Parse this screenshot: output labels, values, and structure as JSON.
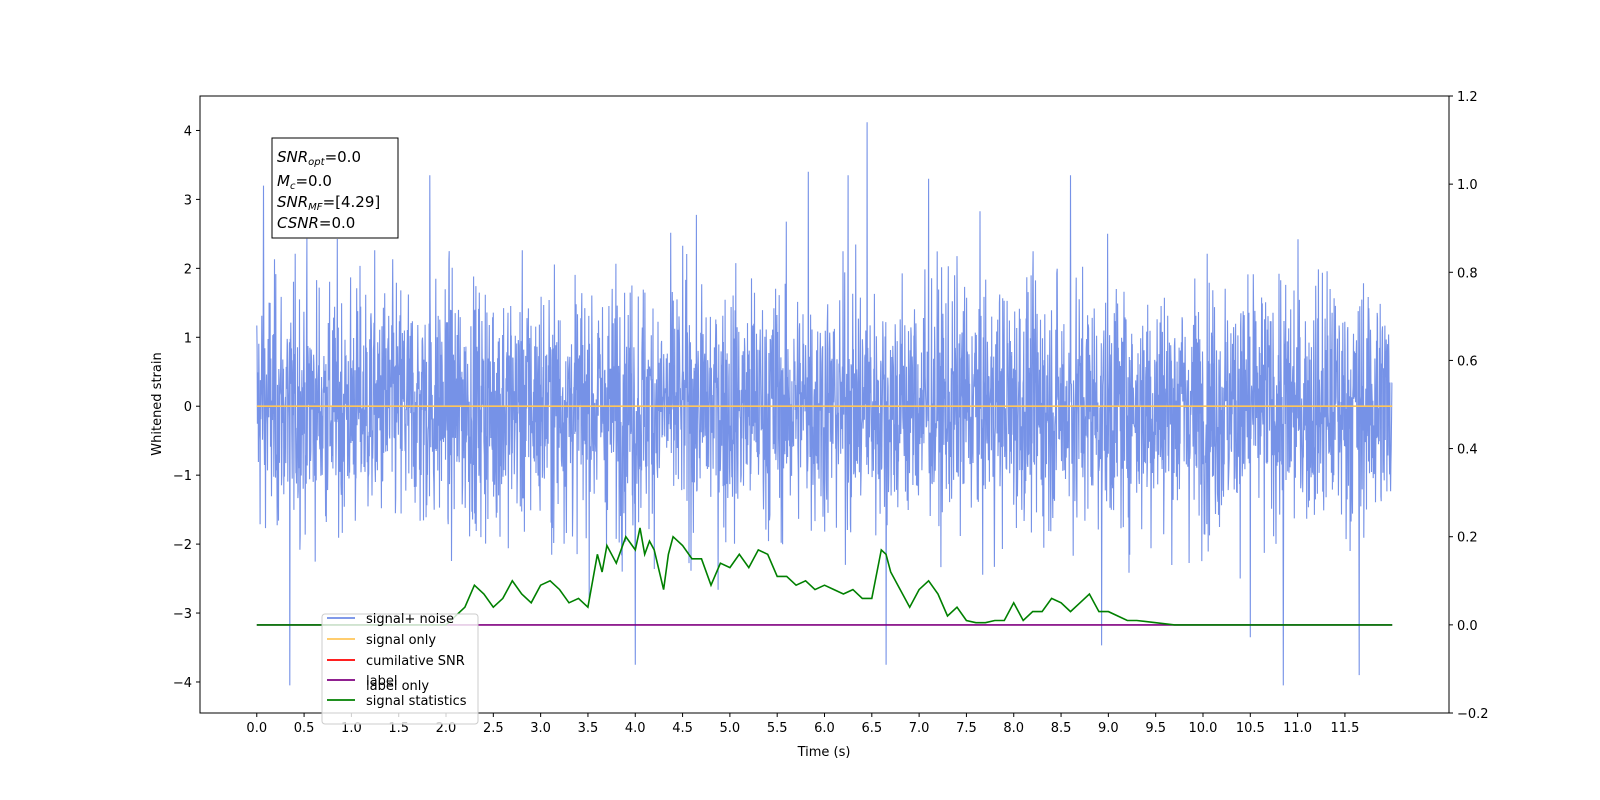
{
  "chart_data": {
    "type": "line",
    "xlabel": "Time (s)",
    "ylabel": "Whitened strain",
    "xlim": [
      -0.6,
      12.6
    ],
    "ylim": [
      -4.45,
      4.5
    ],
    "y2lim": [
      -0.2,
      1.2
    ],
    "x_ticks": [
      "0.0",
      "0.5",
      "1.0",
      "1.5",
      "2.0",
      "2.5",
      "3.0",
      "3.5",
      "4.0",
      "4.5",
      "5.0",
      "5.5",
      "6.0",
      "6.5",
      "7.0",
      "7.5",
      "8.0",
      "8.5",
      "9.0",
      "9.5",
      "10.0",
      "10.5",
      "11.0",
      "11.5"
    ],
    "y_ticks": [
      "4",
      "3",
      "2",
      "1",
      "0",
      "−1",
      "−2",
      "−3",
      "−4"
    ],
    "y2_ticks": [
      "1.2",
      "1.0",
      "0.8",
      "0.6",
      "0.4",
      "0.2",
      "0.0",
      "−0.2"
    ],
    "annotation": [
      {
        "base": "SNR",
        "sub": "opt",
        "value": "=0.0"
      },
      {
        "base": "M",
        "sub": "c",
        "value": "=0.0"
      },
      {
        "base": "SNR",
        "sub": "MF",
        "value": "=[4.29]"
      },
      {
        "base": "CSNR",
        "sub": "",
        "value": "=0.0"
      }
    ],
    "legend": {
      "placement": "lower-left",
      "entries": [
        {
          "label": "signal+ noise",
          "color": "#6f8ce6"
        },
        {
          "label": "signal only",
          "color": "#ffc65a"
        },
        {
          "label": "cumilative SNR",
          "color": "#ff0000"
        },
        {
          "label": "label",
          "color": "#800080"
        },
        {
          "label": "signal statistics",
          "color": "#008000"
        }
      ],
      "hidden_text": "label only"
    },
    "series": [
      {
        "name": "signal+ noise",
        "axis": "left",
        "description": "white noise, approx. Gaussian sigma 0.9, t from 0 to 12 s",
        "peaks": [
          [
            6.45,
            4.12
          ],
          [
            5.83,
            3.4
          ],
          [
            6.25,
            3.35
          ],
          [
            8.6,
            3.35
          ],
          [
            1.83,
            3.35
          ],
          [
            0.07,
            3.2
          ],
          [
            4.0,
            3.3
          ],
          [
            7.1,
            3.3
          ],
          [
            0.35,
            -4.05
          ],
          [
            10.85,
            -4.05
          ],
          [
            11.65,
            -3.9
          ],
          [
            4.0,
            -3.75
          ],
          [
            6.65,
            -3.75
          ],
          [
            8.93,
            -3.47
          ],
          [
            10.5,
            -3.35
          ]
        ]
      },
      {
        "name": "signal only",
        "axis": "left",
        "x": [
          0.0,
          12.0
        ],
        "y": [
          0.0,
          0.0
        ]
      },
      {
        "name": "label",
        "axis": "right",
        "x": [
          0.0,
          12.0
        ],
        "y": [
          0.0,
          0.0
        ]
      },
      {
        "name": "signal statistics",
        "axis": "right",
        "x": [
          0.0,
          1.0,
          2.0,
          2.2,
          2.3,
          2.4,
          2.5,
          2.6,
          2.7,
          2.8,
          2.9,
          3.0,
          3.1,
          3.2,
          3.3,
          3.4,
          3.5,
          3.6,
          3.65,
          3.7,
          3.8,
          3.9,
          4.0,
          4.05,
          4.1,
          4.15,
          4.2,
          4.3,
          4.35,
          4.4,
          4.5,
          4.6,
          4.7,
          4.8,
          4.9,
          5.0,
          5.1,
          5.2,
          5.3,
          5.4,
          5.5,
          5.6,
          5.7,
          5.8,
          5.9,
          6.0,
          6.1,
          6.2,
          6.3,
          6.4,
          6.5,
          6.6,
          6.65,
          6.7,
          6.8,
          6.9,
          7.0,
          7.1,
          7.2,
          7.3,
          7.4,
          7.5,
          7.6,
          7.7,
          7.8,
          7.9,
          8.0,
          8.1,
          8.2,
          8.3,
          8.4,
          8.5,
          8.6,
          8.7,
          8.8,
          8.9,
          9.0,
          9.1,
          9.2,
          9.3,
          9.5,
          9.7,
          10.0,
          11.0,
          12.0
        ],
        "y": [
          0.0,
          0.0,
          0.0,
          0.04,
          0.09,
          0.07,
          0.04,
          0.06,
          0.1,
          0.07,
          0.05,
          0.09,
          0.1,
          0.08,
          0.05,
          0.06,
          0.04,
          0.16,
          0.12,
          0.18,
          0.14,
          0.2,
          0.17,
          0.22,
          0.16,
          0.19,
          0.17,
          0.08,
          0.16,
          0.2,
          0.18,
          0.15,
          0.15,
          0.09,
          0.14,
          0.13,
          0.16,
          0.13,
          0.17,
          0.16,
          0.11,
          0.11,
          0.09,
          0.1,
          0.08,
          0.09,
          0.08,
          0.07,
          0.08,
          0.06,
          0.06,
          0.17,
          0.16,
          0.12,
          0.08,
          0.04,
          0.08,
          0.1,
          0.07,
          0.02,
          0.04,
          0.01,
          0.005,
          0.005,
          0.01,
          0.01,
          0.05,
          0.01,
          0.03,
          0.03,
          0.06,
          0.05,
          0.03,
          0.05,
          0.07,
          0.03,
          0.03,
          0.02,
          0.01,
          0.01,
          0.005,
          0.0,
          0.0,
          0.0,
          0.0
        ]
      }
    ]
  }
}
